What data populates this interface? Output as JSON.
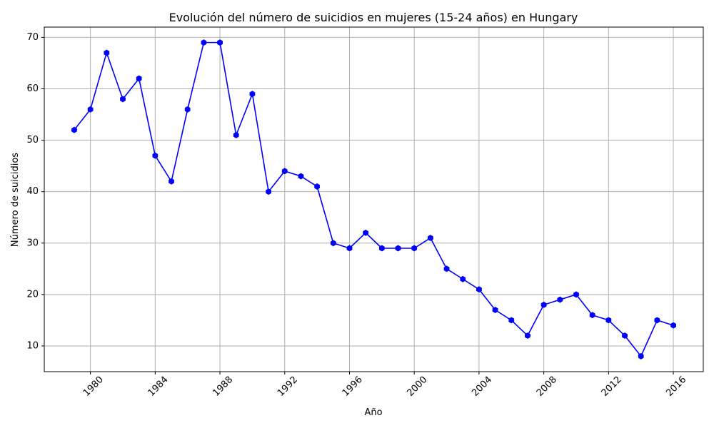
{
  "chart_data": {
    "type": "line",
    "title": "Evolución del número de suicidios en mujeres (15-24 años) en Hungary",
    "xlabel": "Año",
    "ylabel": "Número de suicidios",
    "xlim": [
      1977.15,
      2017.85
    ],
    "ylim": [
      5.0,
      72.0
    ],
    "xticks": [
      1980,
      1984,
      1988,
      1992,
      1996,
      2000,
      2004,
      2008,
      2012,
      2016
    ],
    "yticks": [
      10,
      20,
      30,
      40,
      50,
      60,
      70
    ],
    "grid": true,
    "line_color": "#0000ff",
    "marker": "hexagon",
    "series": [
      {
        "x": [
          1979,
          1980,
          1981,
          1982,
          1983,
          1984,
          1985,
          1986,
          1987,
          1988,
          1989,
          1990,
          1991,
          1992,
          1993,
          1994,
          1995,
          1996,
          1997,
          1998,
          1999,
          2000,
          2001,
          2002,
          2003,
          2004,
          2005,
          2006,
          2007,
          2008,
          2009,
          2010,
          2011,
          2012,
          2013,
          2014,
          2015,
          2016
        ],
        "y": [
          52,
          56,
          67,
          58,
          62,
          47,
          42,
          56,
          69,
          69,
          51,
          59,
          40,
          44,
          43,
          41,
          30,
          29,
          32,
          29,
          29,
          29,
          31,
          25,
          23,
          21,
          17,
          15,
          12,
          18,
          19,
          20,
          16,
          15,
          12,
          8,
          15,
          14
        ]
      }
    ]
  }
}
